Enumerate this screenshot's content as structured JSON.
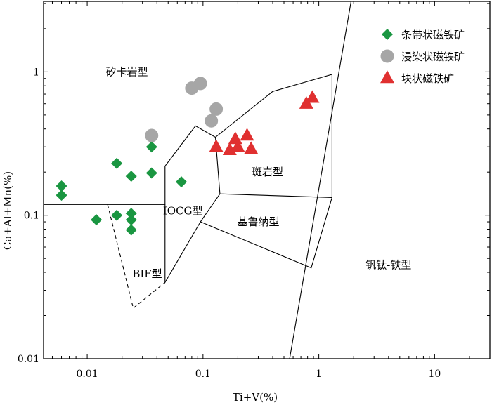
{
  "chart_data": {
    "type": "scatter",
    "x_scale": "log",
    "y_scale": "log",
    "xlabel": "Ti+V(%)",
    "ylabel": "Ca+Al+Mn(%)",
    "xlim": [
      0.0042,
      30
    ],
    "ylim": [
      0.01,
      3.1
    ],
    "x_ticks": [
      {
        "value": 0.01,
        "label": "0.01"
      },
      {
        "value": 0.1,
        "label": "0.1"
      },
      {
        "value": 1,
        "label": "1"
      },
      {
        "value": 10,
        "label": "10"
      }
    ],
    "y_ticks": [
      {
        "value": 0.01,
        "label": "0.01"
      },
      {
        "value": 0.1,
        "label": "0.1"
      },
      {
        "value": 1,
        "label": "1"
      }
    ],
    "legend_position": "top-right",
    "series": [
      {
        "name": "条带状磁铁矿",
        "marker": "diamond",
        "color": "#1a9641",
        "points": [
          [
            0.006,
            0.16
          ],
          [
            0.006,
            0.138
          ],
          [
            0.012,
            0.093
          ],
          [
            0.018,
            0.1
          ],
          [
            0.018,
            0.23
          ],
          [
            0.024,
            0.187
          ],
          [
            0.024,
            0.103
          ],
          [
            0.024,
            0.093
          ],
          [
            0.024,
            0.079
          ],
          [
            0.036,
            0.3
          ],
          [
            0.036,
            0.197
          ],
          [
            0.065,
            0.171
          ]
        ]
      },
      {
        "name": "浸染状磁铁矿",
        "marker": "circle",
        "color": "#a6a6a6",
        "points": [
          [
            0.036,
            0.36
          ],
          [
            0.08,
            0.77
          ],
          [
            0.095,
            0.83
          ],
          [
            0.13,
            0.55
          ],
          [
            0.118,
            0.455
          ]
        ]
      },
      {
        "name": "块状磁铁矿",
        "marker": "triangle",
        "color": "#e03030",
        "points": [
          [
            0.13,
            0.3
          ],
          [
            0.17,
            0.285
          ],
          [
            0.19,
            0.34
          ],
          [
            0.2,
            0.3
          ],
          [
            0.24,
            0.36
          ],
          [
            0.26,
            0.29
          ],
          [
            0.78,
            0.6
          ],
          [
            0.88,
            0.66
          ]
        ]
      }
    ],
    "fields": [
      {
        "name": "矽卡岩型",
        "x": 0.022,
        "y": 1.0
      },
      {
        "name": "斑岩型",
        "x": 0.36,
        "y": 0.2
      },
      {
        "name": "IOCG型",
        "x": 0.067,
        "y": 0.107
      },
      {
        "name": "基鲁纳型",
        "x": 0.3,
        "y": 0.09
      },
      {
        "name": "BIF型",
        "x": 0.033,
        "y": 0.039
      },
      {
        "name": "钒钛-铁型",
        "x": 4.0,
        "y": 0.045
      }
    ],
    "boundaries": [
      {
        "style": "solid",
        "points": [
          [
            0.0042,
            0.119
          ],
          [
            0.047,
            0.119
          ],
          [
            0.047,
            0.22
          ],
          [
            0.086,
            0.42
          ],
          [
            0.128,
            0.35
          ],
          [
            0.4,
            0.73
          ],
          [
            1.3,
            0.96
          ],
          [
            1.3,
            0.133
          ],
          [
            0.14,
            0.141
          ],
          [
            0.128,
            0.35
          ]
        ]
      },
      {
        "style": "solid",
        "points": [
          [
            0.047,
            0.119
          ],
          [
            0.047,
            0.034
          ],
          [
            0.095,
            0.09
          ],
          [
            0.14,
            0.141
          ]
        ]
      },
      {
        "style": "solid",
        "points": [
          [
            0.095,
            0.09
          ],
          [
            0.86,
            0.043
          ],
          [
            1.3,
            0.133
          ]
        ]
      },
      {
        "style": "solid",
        "points": [
          [
            0.56,
            0.01
          ],
          [
            1.9,
            3.1
          ]
        ]
      },
      {
        "style": "dashed",
        "points": [
          [
            0.015,
            0.119
          ],
          [
            0.025,
            0.0225
          ],
          [
            0.047,
            0.034
          ]
        ]
      }
    ]
  }
}
